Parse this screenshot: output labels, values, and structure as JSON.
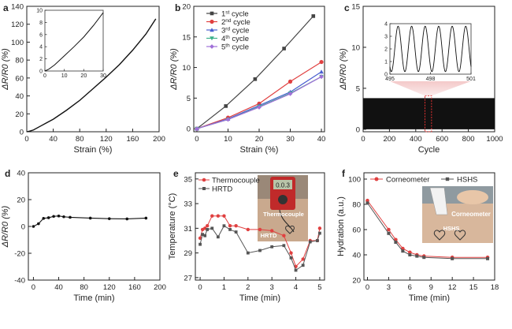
{
  "chart_data": [
    {
      "panel": "a",
      "type": "line",
      "ylabel": "ΔR/R0 (%)",
      "xlabel": "Strain (%)",
      "xlim": [
        0,
        200
      ],
      "ylim": [
        0,
        140
      ],
      "xticks": [
        "0",
        "40",
        "80",
        "120",
        "160",
        "200"
      ],
      "yticks": [
        "0",
        "20",
        "40",
        "60",
        "80",
        "100",
        "120",
        "140"
      ],
      "x": [
        0,
        5,
        10,
        20,
        30,
        40,
        60,
        80,
        100,
        120,
        140,
        160,
        180,
        195
      ],
      "y": [
        0,
        0.8,
        2,
        6,
        10,
        14,
        24,
        35,
        48,
        61,
        75,
        91,
        109,
        126
      ],
      "inset": {
        "xlim": [
          0,
          30
        ],
        "ylim": [
          0,
          10
        ],
        "xticks": [
          "0",
          "10",
          "20",
          "30"
        ],
        "yticks": [
          "0",
          "2",
          "4",
          "6",
          "8",
          "10"
        ],
        "x": [
          0,
          2,
          5,
          10,
          15,
          20,
          25,
          30
        ],
        "y": [
          0,
          0.3,
          1,
          2.5,
          4,
          5.6,
          7.5,
          9.6
        ]
      }
    },
    {
      "panel": "b",
      "type": "line",
      "ylabel": "ΔR/R0 (%)",
      "xlabel": "Strain (%)",
      "xlim": [
        -1,
        41
      ],
      "ylim": [
        -0.5,
        20
      ],
      "xticks": [
        "0",
        "10",
        "20",
        "30",
        "40"
      ],
      "yticks": [
        "0",
        "5",
        "10",
        "15",
        "20"
      ],
      "x": [
        0,
        10,
        20,
        30,
        40
      ],
      "series": [
        {
          "name": "1st cycle",
          "ord": "1",
          "sup": "st",
          "suffix": " cycle",
          "color": "#444444",
          "marker": "square",
          "values": [
            0,
            3.7,
            8.1,
            13.1,
            18.4
          ],
          "x": [
            0,
            9.3,
            18.7,
            28,
            37.4
          ]
        },
        {
          "name": "2nd cycle",
          "ord": "2",
          "sup": "nd",
          "suffix": " cycle",
          "color": "#e04040",
          "marker": "circle",
          "values": [
            0,
            1.8,
            4.1,
            7.7,
            10.9
          ]
        },
        {
          "name": "3rd cycle",
          "ord": "3",
          "sup": "rd",
          "suffix": " cycle",
          "color": "#4a5fd0",
          "marker": "triangle",
          "values": [
            0,
            1.6,
            3.8,
            6.0,
            9.3
          ]
        },
        {
          "name": "4th cycle",
          "ord": "4",
          "sup": "th",
          "suffix": " cycle",
          "color": "#3cb08a",
          "marker": "tri-down",
          "values": [
            0,
            1.5,
            3.6,
            5.8,
            8.5
          ]
        },
        {
          "name": "5th cycle",
          "ord": "5",
          "sup": "th",
          "suffix": " cycle",
          "color": "#a070d8",
          "marker": "diamond",
          "values": [
            0,
            1.5,
            3.5,
            5.7,
            8.5
          ]
        }
      ]
    },
    {
      "panel": "c",
      "type": "line",
      "ylabel": "ΔR/R0 (%)",
      "xlabel": "Cycle",
      "xlim": [
        0,
        1000
      ],
      "ylim": [
        -0.3,
        15
      ],
      "xticks": [
        "0",
        "200",
        "400",
        "600",
        "800",
        "1000"
      ],
      "yticks": [
        "0",
        "5",
        "10",
        "15"
      ],
      "band": {
        "min": 0,
        "max": 3.8
      },
      "inset": {
        "xlim": [
          495,
          501
        ],
        "ylim": [
          0,
          4
        ],
        "xticks": [
          "495",
          "498",
          "501"
        ],
        "yticks": [
          "0",
          "1",
          "2",
          "3",
          "4"
        ],
        "peaks": 6,
        "amplitude_min": 0.2,
        "amplitude_max": 3.8
      }
    },
    {
      "panel": "d",
      "type": "line",
      "ylabel": "ΔR/R0 (%)",
      "xlabel": "Time (min)",
      "xlim": [
        -8,
        200
      ],
      "ylim": [
        -40,
        40
      ],
      "xticks": [
        "0",
        "40",
        "80",
        "120",
        "160",
        "200"
      ],
      "yticks": [
        "-40",
        "-20",
        "0",
        "20",
        "40"
      ],
      "x": [
        0,
        8,
        16,
        24,
        32,
        40,
        48,
        58,
        90,
        120,
        148,
        178
      ],
      "y": [
        0,
        2,
        6,
        6.5,
        7.5,
        7.8,
        7.2,
        6.8,
        6.2,
        5.8,
        5.6,
        6.2
      ]
    },
    {
      "panel": "e",
      "type": "line",
      "ylabel": "Temperature (°C)",
      "xlabel": "Time (min)",
      "xlim": [
        -0.2,
        5.2
      ],
      "ylim": [
        26.8,
        35.5
      ],
      "xticks": [
        "0",
        "1",
        "2",
        "3",
        "4",
        "5"
      ],
      "yticks": [
        "27",
        "29",
        "31",
        "33",
        "35"
      ],
      "inset_labels": [
        "Thermocouple",
        "HRTD"
      ],
      "meter_display": "0.0.3",
      "series": [
        {
          "name": "Thermocouple",
          "color": "#e04040",
          "marker": "circle",
          "x": [
            0,
            0.1,
            0.2,
            0.3,
            0.5,
            0.75,
            1.0,
            1.25,
            1.5,
            2.0,
            2.5,
            3.0,
            3.5,
            3.8,
            4.0,
            4.3,
            4.6,
            4.9,
            5.0
          ],
          "y": [
            30.2,
            30.9,
            31.0,
            31.2,
            32.0,
            32.0,
            32.0,
            31.2,
            31.2,
            30.9,
            30.9,
            30.8,
            30.4,
            29.0,
            27.9,
            28.5,
            30.0,
            30.0,
            31.0
          ]
        },
        {
          "name": "HRTD",
          "color": "#555555",
          "marker": "square",
          "x": [
            0,
            0.1,
            0.2,
            0.3,
            0.5,
            0.75,
            1.0,
            1.25,
            1.5,
            2.0,
            2.5,
            3.0,
            3.5,
            3.8,
            4.0,
            4.3,
            4.6,
            4.9,
            5.0
          ],
          "y": [
            29.7,
            30.5,
            30.4,
            30.9,
            31.0,
            30.3,
            31.2,
            30.9,
            30.7,
            29.0,
            29.2,
            29.5,
            29.6,
            28.6,
            27.6,
            28.0,
            29.9,
            30.0,
            30.6
          ]
        }
      ]
    },
    {
      "panel": "f",
      "type": "line",
      "ylabel": "Hydration (a.u.)",
      "xlabel": "Time (min)",
      "xlim": [
        -0.5,
        18
      ],
      "ylim": [
        20,
        105
      ],
      "xticks": [
        "0",
        "3",
        "6",
        "9",
        "12",
        "15",
        "18"
      ],
      "yticks": [
        "20",
        "40",
        "60",
        "80",
        "100"
      ],
      "inset_labels": [
        "Corneometer",
        "HSHS"
      ],
      "series": [
        {
          "name": "Corneometer",
          "color": "#e04040",
          "marker": "circle",
          "x": [
            0,
            3,
            4,
            5,
            6,
            7,
            8,
            12,
            17
          ],
          "y": [
            83,
            60,
            52,
            45,
            42,
            40,
            39,
            38,
            38
          ]
        },
        {
          "name": "HSHS",
          "color": "#555555",
          "marker": "square",
          "x": [
            0,
            3,
            4,
            5,
            6,
            7,
            8,
            12,
            17
          ],
          "y": [
            81,
            57,
            50,
            43,
            40,
            39,
            38,
            37,
            37
          ]
        }
      ]
    }
  ]
}
